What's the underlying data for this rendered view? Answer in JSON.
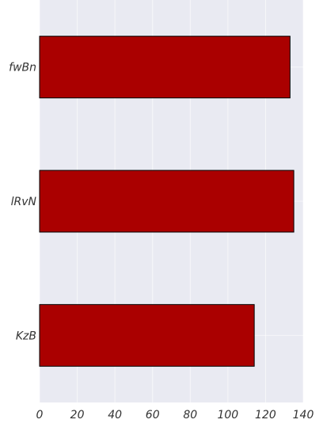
{
  "chart_data": {
    "type": "bar",
    "orientation": "horizontal",
    "categories": [
      "fwBn",
      "lRvN",
      "KzB"
    ],
    "values": [
      133,
      135,
      114
    ],
    "title": "",
    "xlabel": "",
    "ylabel": "",
    "xlim": [
      0,
      140
    ],
    "xticks": [
      0,
      20,
      40,
      60,
      80,
      100,
      120,
      140
    ],
    "grid": true,
    "legend": "none",
    "colors": {
      "bar_fill": "#aa0000",
      "bar_edge": "#000000",
      "plot_background": "#e9eaf2",
      "grid": "#ffffff"
    }
  }
}
